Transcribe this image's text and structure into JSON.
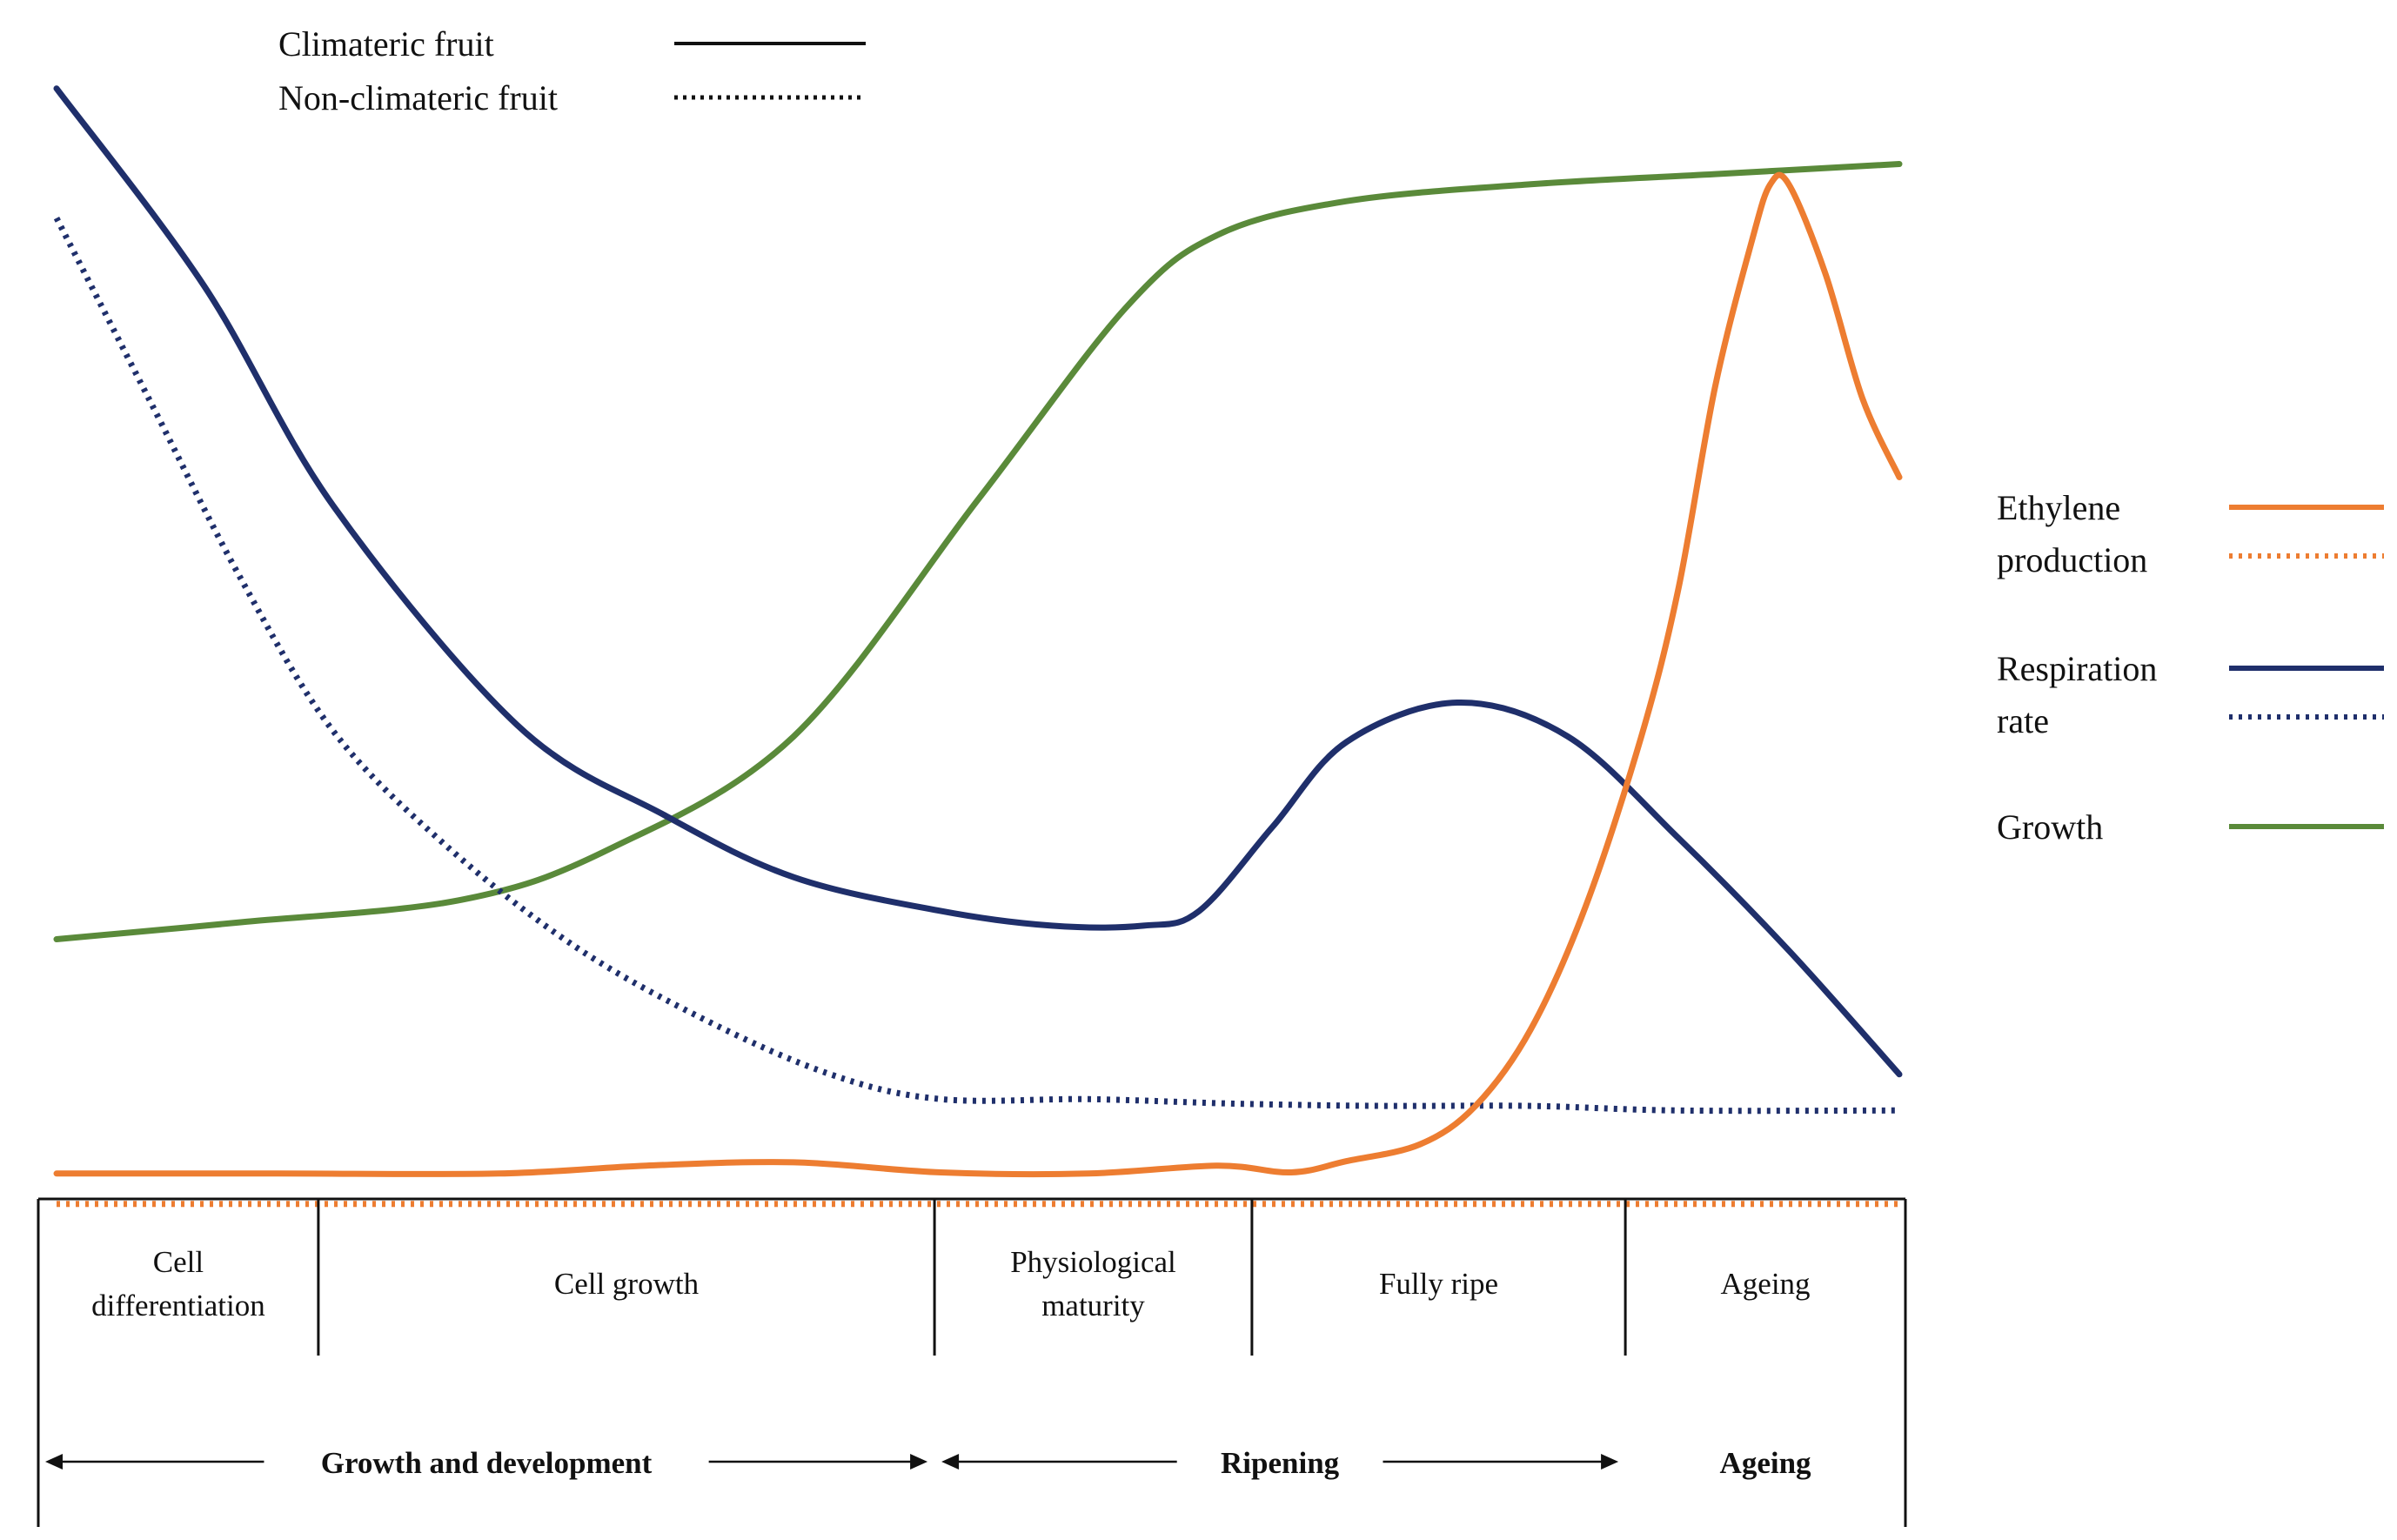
{
  "chart_data": {
    "type": "line",
    "title": "",
    "xlabel": "",
    "ylabel": "",
    "grid": false,
    "legend": {
      "fruit_type": [
        {
          "label": "Climateric fruit",
          "style": "solid"
        },
        {
          "label": "Non-climateric fruit",
          "style": "dotted"
        }
      ],
      "variables": [
        {
          "label_lines": [
            "Ethylene",
            "production"
          ],
          "color": "#ED7D31"
        },
        {
          "label_lines": [
            "Respiration",
            "rate"
          ],
          "color": "#1F2F6B"
        },
        {
          "label_lines": [
            "Growth"
          ],
          "color": "#5A8A3A"
        }
      ]
    },
    "stages": [
      "Cell differentiation",
      "Cell growth",
      "Physiological maturity",
      "Fully ripe",
      "Ageing"
    ],
    "stage_label_lines": [
      [
        "Cell",
        "differentiation"
      ],
      [
        "Cell growth"
      ],
      [
        "Physiological",
        "maturity"
      ],
      [
        "Fully ripe"
      ],
      [
        "Ageing"
      ]
    ],
    "stage_bounds": [
      0,
      15,
      48,
      65,
      85,
      100
    ],
    "phases": [
      {
        "label": "Growth and development",
        "from": 0,
        "to": 48
      },
      {
        "label": "Ripening",
        "from": 48,
        "to": 85
      },
      {
        "label": "Ageing",
        "from": 85,
        "to": 100
      }
    ],
    "x_range": [
      0,
      100
    ],
    "y_range": [
      0,
      100
    ],
    "series": [
      {
        "key": "growth",
        "color": "#5A8A3A",
        "style": "solid",
        "points": [
          [
            0,
            29
          ],
          [
            10,
            30.5
          ],
          [
            22,
            32.5
          ],
          [
            30,
            37
          ],
          [
            40,
            47
          ],
          [
            50,
            68
          ],
          [
            58,
            85
          ],
          [
            63,
            91.5
          ],
          [
            70,
            94.5
          ],
          [
            80,
            96
          ],
          [
            90,
            96.9
          ],
          [
            100,
            97.8
          ]
        ]
      },
      {
        "key": "respiration_climacteric",
        "color": "#1F2F6B",
        "style": "solid",
        "points": [
          [
            0,
            104.5
          ],
          [
            8,
            87
          ],
          [
            15,
            67.5
          ],
          [
            25,
            48
          ],
          [
            33,
            40
          ],
          [
            40,
            34.5
          ],
          [
            48,
            31.5
          ],
          [
            54,
            30.2
          ],
          [
            59,
            30.2
          ],
          [
            62,
            31.5
          ],
          [
            66,
            39
          ],
          [
            70,
            46.5
          ],
          [
            76,
            50
          ],
          [
            82,
            47
          ],
          [
            88,
            38
          ],
          [
            94,
            28
          ],
          [
            100,
            17
          ]
        ]
      },
      {
        "key": "respiration_non_climacteric",
        "color": "#1F2F6B",
        "style": "dotted",
        "points": [
          [
            0,
            93
          ],
          [
            5,
            77
          ],
          [
            10,
            61
          ],
          [
            15,
            47.5
          ],
          [
            21,
            37.5
          ],
          [
            28,
            28.5
          ],
          [
            35,
            22
          ],
          [
            42,
            17
          ],
          [
            48,
            14.8
          ],
          [
            56,
            14.8
          ],
          [
            64,
            14.4
          ],
          [
            72,
            14.2
          ],
          [
            80,
            14.2
          ],
          [
            88,
            13.8
          ],
          [
            100,
            13.8
          ]
        ]
      },
      {
        "key": "ethylene_climacteric",
        "color": "#ED7D31",
        "style": "solid",
        "points": [
          [
            0,
            8.2
          ],
          [
            12,
            8.2
          ],
          [
            24,
            8.2
          ],
          [
            32,
            8.9
          ],
          [
            40,
            9.2
          ],
          [
            48,
            8.3
          ],
          [
            56,
            8.2
          ],
          [
            63,
            8.9
          ],
          [
            67,
            8.3
          ],
          [
            70,
            9.3
          ],
          [
            74,
            10.8
          ],
          [
            77,
            14.2
          ],
          [
            80,
            21
          ],
          [
            83,
            32
          ],
          [
            86,
            47
          ],
          [
            88,
            60
          ],
          [
            90,
            78
          ],
          [
            92,
            91
          ],
          [
            93,
            96
          ],
          [
            94,
            96
          ],
          [
            96,
            88
          ],
          [
            98,
            77
          ],
          [
            100,
            70
          ]
        ]
      },
      {
        "key": "ethylene_non_climacteric",
        "color": "#ED7D31",
        "style": "dotted",
        "points": [
          [
            0,
            5.5
          ],
          [
            100,
            5.5
          ]
        ]
      }
    ]
  }
}
